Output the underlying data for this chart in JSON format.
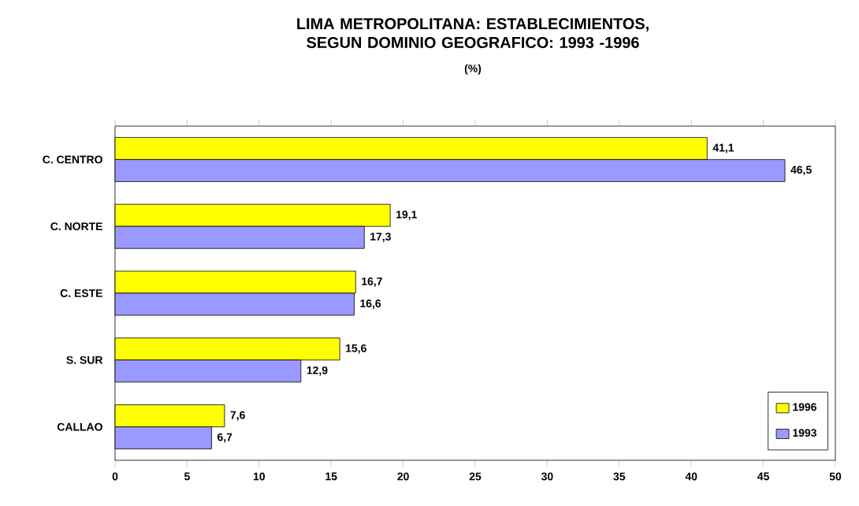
{
  "chart_data": {
    "type": "bar",
    "orientation": "horizontal",
    "title": "LIMA METROPOLITANA: ESTABLECIMIENTOS, SEGUN DOMINIO GEOGRAFICO: 1993 -1996",
    "subtitle": "(%)",
    "categories": [
      "C. CENTRO",
      "C. NORTE",
      "C. ESTE",
      "S. SUR",
      "CALLAO"
    ],
    "series": [
      {
        "name": "1996",
        "color": "#ffff00",
        "values": [
          41.1,
          19.1,
          16.7,
          15.6,
          7.6
        ],
        "value_labels": [
          "41,1",
          "19,1",
          "16,7",
          "15,6",
          "7,6"
        ]
      },
      {
        "name": "1993",
        "color": "#9999ff",
        "values": [
          46.5,
          17.3,
          16.6,
          12.9,
          6.7
        ],
        "value_labels": [
          "46,5",
          "17,3",
          "16,6",
          "12,9",
          "6,7"
        ]
      }
    ],
    "xlim": [
      0,
      50
    ],
    "xticks": [
      0,
      5,
      10,
      15,
      20,
      25,
      30,
      35,
      40,
      45,
      50
    ],
    "legend": "bottom right"
  }
}
